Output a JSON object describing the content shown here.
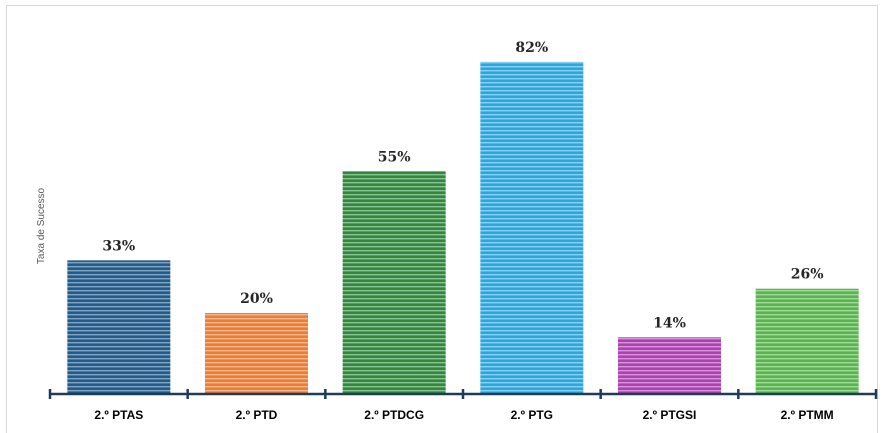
{
  "chart_data": {
    "type": "bar",
    "categories": [
      "2.º PTAS",
      "2.º PTD",
      "2.º PTDCG",
      "2.º PTG",
      "2.º PTGSI",
      "2.º PTMM"
    ],
    "values": [
      33,
      20,
      55,
      82,
      14,
      26
    ],
    "value_labels": [
      "33%",
      "20%",
      "55%",
      "82%",
      "14%",
      "26%"
    ],
    "colors": [
      "#1f5b8c",
      "#ed7d31",
      "#2e8b3a",
      "#29a8e0",
      "#b03fb5",
      "#56b84a"
    ],
    "title": "",
    "xlabel": "",
    "ylabel": "Taxa de Sucesso",
    "ylim": [
      0,
      100
    ],
    "grid": false,
    "legend": "none"
  }
}
